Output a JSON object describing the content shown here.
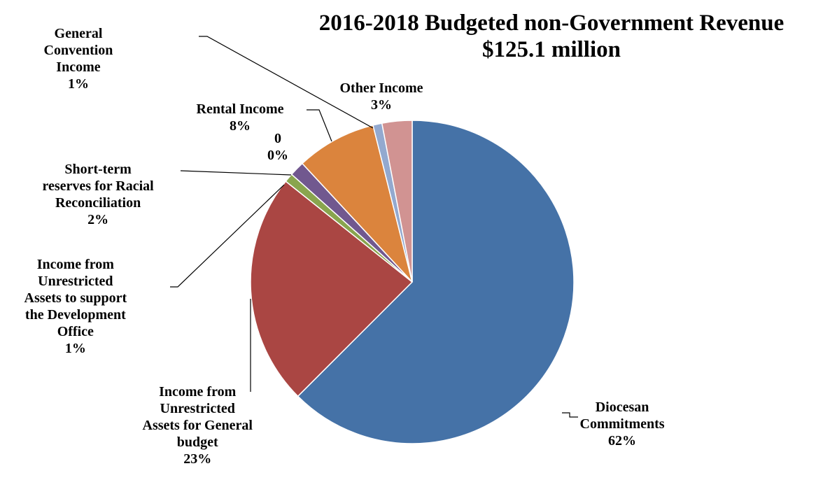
{
  "chart_data": {
    "type": "pie",
    "title": "2016-2018 Budgeted non-Government Revenue",
    "subtitle": "$125.1 million",
    "series": [
      {
        "name": "Diocesan Commitments",
        "label_lines": [
          "Diocesan",
          "Commitments"
        ],
        "pct_label": "62%",
        "value": 62.5,
        "color": "#4572A7"
      },
      {
        "name": "Income from Unrestricted Assets for General budget",
        "label_lines": [
          "Income from",
          "Unrestricted",
          "Assets for General",
          "budget"
        ],
        "pct_label": "23%",
        "value": 23.2,
        "color": "#AA4643"
      },
      {
        "name": "Income from Unrestricted Assets to support the Development Office",
        "label_lines": [
          "Income from",
          "Unrestricted",
          "Assets to support",
          "the Development",
          "Office"
        ],
        "pct_label": "1%",
        "value": 0.9,
        "color": "#89A54E"
      },
      {
        "name": "Short-term reserves for Racial Reconciliation",
        "label_lines": [
          "Short-term",
          "reserves for Racial",
          "Reconciliation"
        ],
        "pct_label": "2%",
        "value": 1.5,
        "color": "#71588F"
      },
      {
        "name": "0",
        "label_lines": [
          "0"
        ],
        "pct_label": "0%",
        "value": 0.0,
        "color": "#4198AF"
      },
      {
        "name": "Rental Income",
        "label_lines": [
          "Rental Income"
        ],
        "pct_label": "8%",
        "value": 8.0,
        "color": "#DB843D"
      },
      {
        "name": "General Convention Income",
        "label_lines": [
          "General",
          "Convention",
          "Income"
        ],
        "pct_label": "1%",
        "value": 0.9,
        "color": "#93A9CF"
      },
      {
        "name": "Other Income",
        "label_lines": [
          "Other Income"
        ],
        "pct_label": "3%",
        "value": 3.0,
        "color": "#D19392"
      }
    ]
  }
}
